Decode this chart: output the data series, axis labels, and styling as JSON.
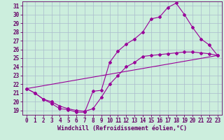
{
  "xlabel": "Windchill (Refroidissement éolien,°C)",
  "bg_color": "#cceedd",
  "grid_color": "#aabbcc",
  "line_color": "#990099",
  "spine_color": "#660066",
  "xlim_min": -0.5,
  "xlim_max": 23.5,
  "ylim_min": 18.5,
  "ylim_max": 31.5,
  "xticks": [
    0,
    1,
    2,
    3,
    4,
    5,
    6,
    7,
    8,
    9,
    10,
    11,
    12,
    13,
    14,
    15,
    16,
    17,
    18,
    19,
    20,
    21,
    22,
    23
  ],
  "yticks": [
    19,
    20,
    21,
    22,
    23,
    24,
    25,
    26,
    27,
    28,
    29,
    30,
    31
  ],
  "line1_x": [
    0,
    1,
    2,
    3,
    4,
    5,
    6,
    7,
    8,
    9,
    10,
    11,
    12,
    13,
    14,
    15,
    16,
    17,
    18,
    19,
    20,
    21,
    22,
    23
  ],
  "line1_y": [
    21.5,
    21.0,
    20.3,
    19.8,
    19.2,
    19.1,
    18.8,
    18.8,
    21.2,
    21.3,
    24.5,
    25.8,
    26.6,
    27.2,
    28.0,
    29.5,
    29.7,
    30.8,
    31.3,
    30.0,
    28.5,
    27.2,
    26.5,
    25.3
  ],
  "line2_x": [
    0,
    1,
    2,
    3,
    4,
    5,
    6,
    7,
    8,
    9,
    10,
    11,
    12,
    13,
    14,
    15,
    16,
    17,
    18,
    19,
    20,
    21,
    22,
    23
  ],
  "line2_y": [
    21.5,
    21.0,
    20.3,
    20.0,
    19.5,
    19.2,
    19.0,
    18.9,
    19.2,
    20.5,
    22.0,
    23.0,
    24.0,
    24.5,
    25.2,
    25.3,
    25.4,
    25.5,
    25.6,
    25.7,
    25.7,
    25.6,
    25.5,
    25.3
  ],
  "line3_x": [
    0,
    23
  ],
  "line3_y": [
    21.5,
    25.3
  ],
  "tick_fontsize": 5.5,
  "xlabel_fontsize": 6.0
}
